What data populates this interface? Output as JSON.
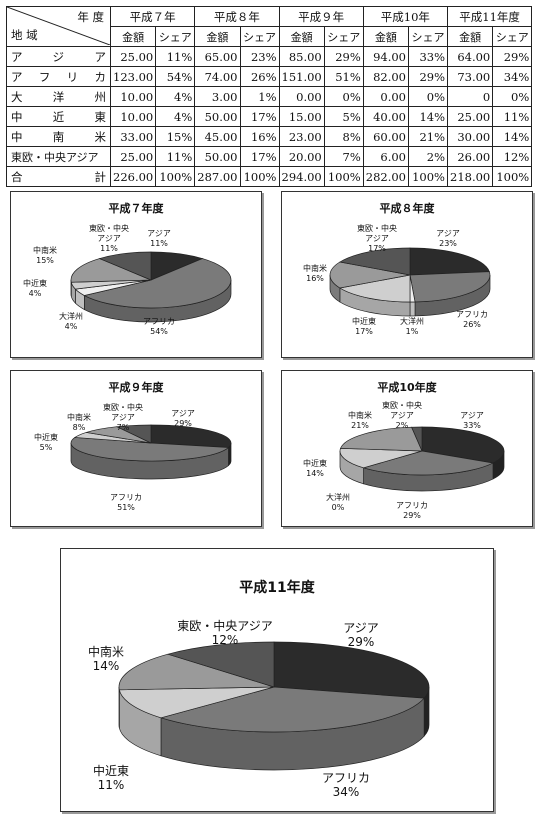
{
  "table": {
    "header_year": "年 度",
    "header_region": "地 域",
    "col_amount": "金額",
    "col_share": "シェア",
    "periods": [
      "平成７年",
      "平成８年",
      "平成９年",
      "平成10年",
      "平成11年度"
    ],
    "rows": [
      {
        "region": "アジア",
        "amt": [
          "25.00",
          "65.00",
          "85.00",
          "94.00",
          "64.00"
        ],
        "shr": [
          "11%",
          "23%",
          "29%",
          "33%",
          "29%"
        ]
      },
      {
        "region": "アフリカ",
        "amt": [
          "123.00",
          "74.00",
          "151.00",
          "82.00",
          "73.00"
        ],
        "shr": [
          "54%",
          "26%",
          "51%",
          "29%",
          "34%"
        ]
      },
      {
        "region": "大洋州",
        "amt": [
          "10.00",
          "3.00",
          "0.00",
          "0.00",
          "0"
        ],
        "shr": [
          "4%",
          "1%",
          "0%",
          "0%",
          "0%"
        ]
      },
      {
        "region": "中近東",
        "amt": [
          "10.00",
          "50.00",
          "15.00",
          "40.00",
          "25.00"
        ],
        "shr": [
          "4%",
          "17%",
          "5%",
          "14%",
          "11%"
        ]
      },
      {
        "region": "中南米",
        "amt": [
          "33.00",
          "45.00",
          "23.00",
          "60.00",
          "30.00"
        ],
        "shr": [
          "15%",
          "16%",
          "8%",
          "21%",
          "14%"
        ]
      },
      {
        "region": "東欧・中央アジア",
        "amt": [
          "25.00",
          "50.00",
          "20.00",
          "6.00",
          "26.00"
        ],
        "shr": [
          "11%",
          "17%",
          "7%",
          "2%",
          "12%"
        ]
      },
      {
        "region": "合　計",
        "amt": [
          "226.00",
          "287.00",
          "294.00",
          "282.00",
          "218.00"
        ],
        "shr": [
          "100%",
          "100%",
          "100%",
          "100%",
          "100%"
        ]
      }
    ]
  },
  "colors": {
    "アジア": "#2b2b2b",
    "アフリカ": "#7a7a7a",
    "大洋州": "#efefef",
    "中近東": "#cfcfcf",
    "中南米": "#9a9a9a",
    "東欧・中央アジア": "#555555"
  },
  "chart_data": [
    {
      "type": "pie",
      "title": "平成７年度",
      "slices": [
        {
          "label": "アジア",
          "value": 11,
          "text": "アジア\n11%"
        },
        {
          "label": "アフリカ",
          "value": 54,
          "text": "アフリカ\n54%"
        },
        {
          "label": "大洋州",
          "value": 4,
          "text": "大洋州\n4%"
        },
        {
          "label": "中近東",
          "value": 4,
          "text": "中近東\n4%"
        },
        {
          "label": "中南米",
          "value": 15,
          "text": "中南米\n15%"
        },
        {
          "label": "東欧・中央アジア",
          "value": 11,
          "text": "東欧・中央\nアジア\n11%"
        }
      ]
    },
    {
      "type": "pie",
      "title": "平成８年度",
      "slices": [
        {
          "label": "アジア",
          "value": 23,
          "text": "アジア\n23%"
        },
        {
          "label": "アフリカ",
          "value": 26,
          "text": "アフリカ\n26%"
        },
        {
          "label": "大洋州",
          "value": 1,
          "text": "大洋州\n1%"
        },
        {
          "label": "中近東",
          "value": 17,
          "text": "中近東\n17%"
        },
        {
          "label": "中南米",
          "value": 16,
          "text": "中南米\n16%"
        },
        {
          "label": "東欧・中央アジア",
          "value": 17,
          "text": "東欧・中央\nアジア\n17%"
        }
      ]
    },
    {
      "type": "pie",
      "title": "平成９年度",
      "slices": [
        {
          "label": "アジア",
          "value": 29,
          "text": "アジア\n29%"
        },
        {
          "label": "アフリカ",
          "value": 51,
          "text": "アフリカ\n51%"
        },
        {
          "label": "中近東",
          "value": 5,
          "text": "中近東\n5%"
        },
        {
          "label": "中南米",
          "value": 8,
          "text": "中南米\n8%"
        },
        {
          "label": "東欧・中央アジア",
          "value": 7,
          "text": "東欧・中央\nアジア\n7%"
        }
      ]
    },
    {
      "type": "pie",
      "title": "平成10年度",
      "slices": [
        {
          "label": "アジア",
          "value": 33,
          "text": "アジア\n33%"
        },
        {
          "label": "アフリカ",
          "value": 29,
          "text": "アフリカ\n29%"
        },
        {
          "label": "大洋州",
          "value": 0,
          "text": "大洋州\n0%"
        },
        {
          "label": "中近東",
          "value": 14,
          "text": "中近東\n14%"
        },
        {
          "label": "中南米",
          "value": 21,
          "text": "中南米\n21%"
        },
        {
          "label": "東欧・中央アジア",
          "value": 2,
          "text": "東欧・中央\nアジア\n2%"
        }
      ]
    },
    {
      "type": "pie",
      "title": "平成11年度",
      "slices": [
        {
          "label": "アジア",
          "value": 29,
          "text": "アジア\n29%"
        },
        {
          "label": "アフリカ",
          "value": 34,
          "text": "アフリカ\n34%"
        },
        {
          "label": "中近東",
          "value": 11,
          "text": "中近東\n11%"
        },
        {
          "label": "中南米",
          "value": 14,
          "text": "中南米\n14%"
        },
        {
          "label": "東欧・中央アジア",
          "value": 12,
          "text": "東欧・中央アジア\n12%"
        }
      ]
    }
  ]
}
